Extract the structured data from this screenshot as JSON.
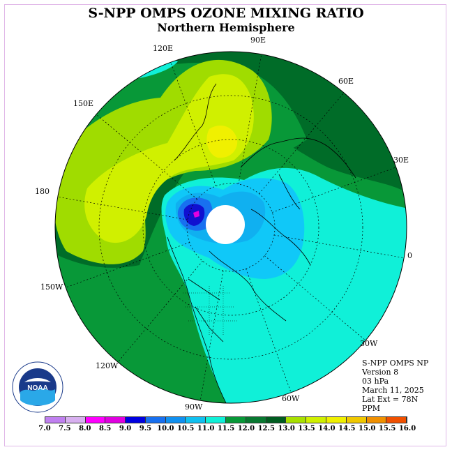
{
  "title": "S-NPP OMPS OZONE MIXING RATIO",
  "subtitle": "Northern Hemisphere",
  "longitude_labels": [
    "90E",
    "60E",
    "30E",
    "0",
    "30W",
    "60W",
    "90W",
    "120W",
    "150W",
    "180",
    "150E",
    "120E"
  ],
  "info": {
    "line1": "S-NPP OMPS NP",
    "line2": "Version 8",
    "line3": "03 hPa",
    "line4": "March 11, 2025",
    "line5": "Lat Ext = 78N",
    "line6": "PPM"
  },
  "colorbar": {
    "ticks": [
      "7.0",
      "7.5",
      "8.0",
      "8.5",
      "9.0",
      "9.5",
      "10.0",
      "10.5",
      "11.0",
      "11.5",
      "12.0",
      "12.5",
      "13.0",
      "13.5",
      "14.0",
      "14.5",
      "15.0",
      "15.5",
      "16.0"
    ],
    "colors": [
      "#c080f0",
      "#d8b0f0",
      "#ff00ff",
      "#e000e0",
      "#0000e0",
      "#1870f0",
      "#1090f0",
      "#10c0f0",
      "#10f0d8",
      "#089838",
      "#087830",
      "#005c20",
      "#a8e000",
      "#d0f000",
      "#f0f000",
      "#f0c800",
      "#f09000",
      "#f05000",
      "#e00000",
      "#a00000",
      "#805040"
    ],
    "used_colors": {
      "c85": "#e000e0",
      "c90": "#1010d0",
      "c95": "#1870f0",
      "c100": "#10b0f0",
      "c105": "#10c8f8",
      "c110": "#10f0d8",
      "c115": "#089838",
      "c120": "#006c28",
      "c125": "#a0dc00",
      "c130": "#d0f000",
      "c135": "#f0f000"
    }
  },
  "logo_text": "NOAA"
}
